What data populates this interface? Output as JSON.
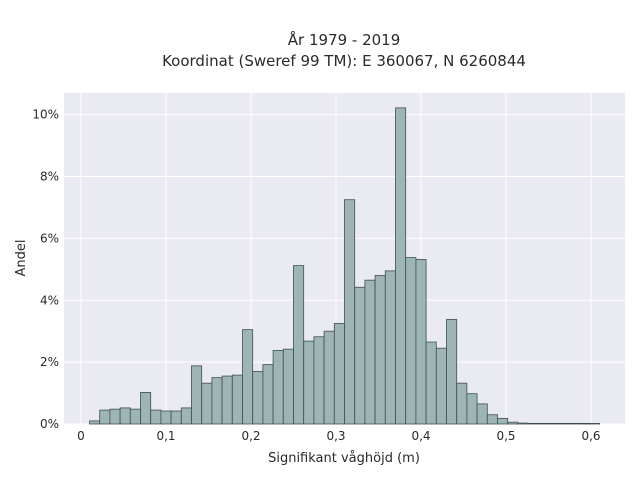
{
  "chart_data": {
    "type": "bar",
    "title_line1": "År 1979 - 2019",
    "title_line2": "Koordinat (Sweref 99 TM): E 360067, N 6260844",
    "xlabel": "Signifikant våghöjd (m)",
    "ylabel": "Andel",
    "xlim": [
      -0.02,
      0.64
    ],
    "ylim": [
      0,
      10.7
    ],
    "x_ticks": [
      0,
      0.1,
      0.2,
      0.3,
      0.4,
      0.5,
      0.6
    ],
    "x_tick_labels": [
      "0",
      "0,1",
      "0,2",
      "0,3",
      "0,4",
      "0,5",
      "0,6"
    ],
    "y_ticks": [
      0,
      2,
      4,
      6,
      8,
      10
    ],
    "y_tick_labels": [
      "0%",
      "2%",
      "4%",
      "6%",
      "8%",
      "10%"
    ],
    "grid": true,
    "bin_width": 0.012,
    "bin_start": 0.01,
    "values": [
      0.1,
      0.45,
      0.48,
      0.52,
      0.48,
      1.02,
      0.45,
      0.42,
      0.42,
      0.52,
      1.88,
      1.32,
      1.5,
      1.55,
      1.58,
      3.05,
      1.7,
      1.92,
      2.38,
      2.42,
      5.12,
      2.68,
      2.82,
      3.0,
      3.25,
      7.25,
      4.42,
      4.65,
      4.8,
      4.95,
      10.22,
      5.38,
      5.32,
      2.65,
      2.45,
      3.38,
      1.32,
      0.98,
      0.65,
      0.3,
      0.18,
      0.06,
      0.03,
      0.02,
      0.02,
      0.02,
      0.02,
      0.02,
      0.02,
      0.02
    ],
    "colors": {
      "bar_fill": "#9db5b5",
      "bar_stroke": "#3f4f4f",
      "plot_bg": "#eaeaf2",
      "grid": "#ffffff",
      "text": "#2a2a2a"
    }
  }
}
